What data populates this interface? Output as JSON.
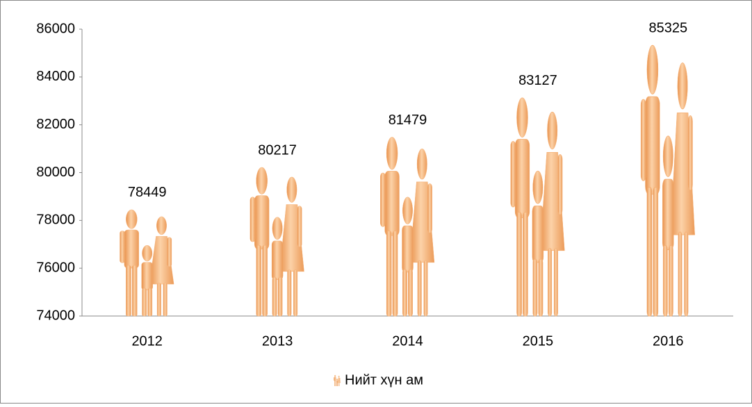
{
  "chart_data": {
    "type": "bar",
    "categories": [
      "2012",
      "2013",
      "2014",
      "2015",
      "2016"
    ],
    "series": [
      {
        "name": "Нийт хүн ам",
        "color": "#f5b074",
        "values": [
          78449,
          80217,
          81479,
          83127,
          85325
        ]
      }
    ],
    "ylim": [
      74000,
      86000
    ],
    "yticks": [
      74000,
      76000,
      78000,
      80000,
      82000,
      84000,
      86000
    ],
    "data_labels": true
  }
}
